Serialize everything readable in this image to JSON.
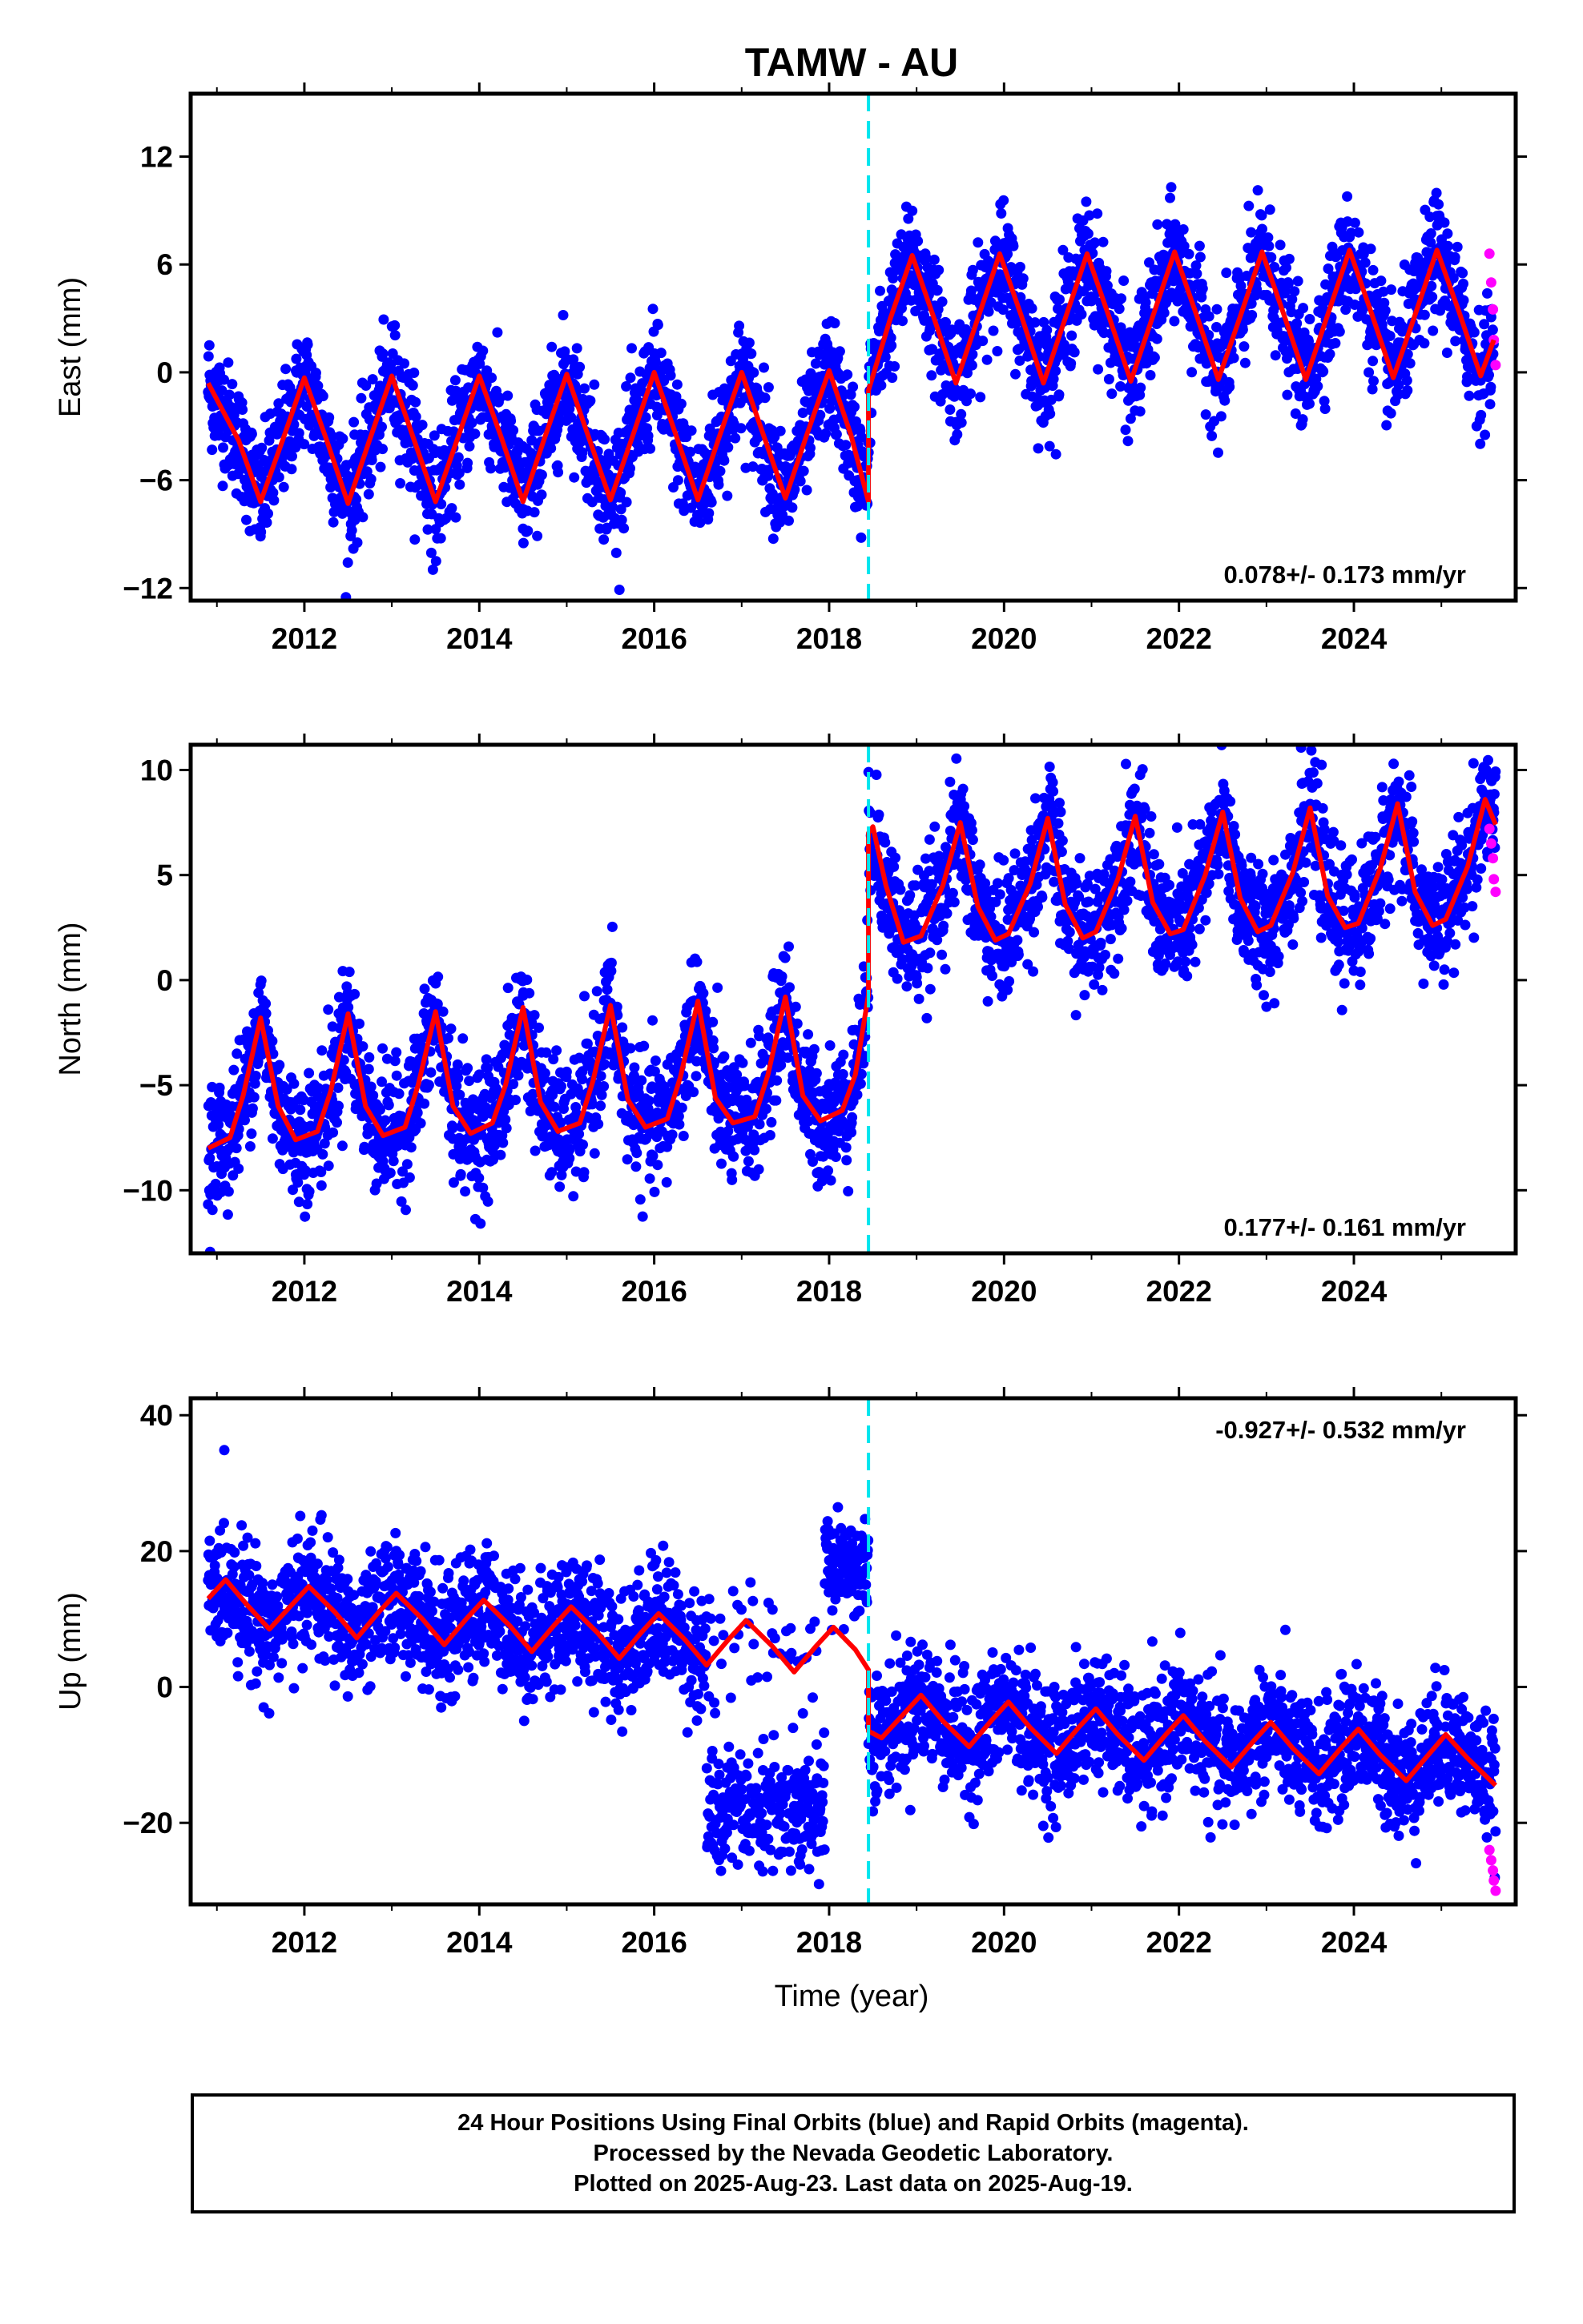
{
  "title": "TAMW - AU",
  "xlabel": "Time (year)",
  "footer": {
    "line1": "24 Hour Positions Using Final Orbits (blue) and Rapid Orbits (magenta).",
    "line2": "Processed by the Nevada Geodetic Laboratory.",
    "line3": "Plotted on 2025-Aug-23. Last data on 2025-Aug-19."
  },
  "colors": {
    "final": "#0000ff",
    "rapid": "#ff00ff",
    "model": "#ff0000",
    "offset": "#00e5ee"
  },
  "chart_data": [
    {
      "type": "scatter",
      "component": "East",
      "ylabel": "East (mm)",
      "xlim": [
        2010.7,
        2025.85
      ],
      "ylim": [
        -12.7,
        15.5
      ],
      "yticks": [
        -12,
        -6,
        0,
        6,
        12
      ],
      "xticks": [
        2012,
        2014,
        2016,
        2018,
        2020,
        2022,
        2024
      ],
      "rate_text": "0.078+/- 0.173 mm/yr",
      "rate_position": "bottom-right",
      "equipment_change": 2018.45,
      "model": {
        "before": {
          "x": [
            2010.9,
            2011.25,
            2011.5,
            2011.75,
            2012.0,
            2012.25,
            2012.5,
            2012.75,
            2013.0,
            2013.25,
            2013.5,
            2013.75,
            2014.0,
            2014.25,
            2014.5,
            2014.75,
            2015.0,
            2015.25,
            2015.5,
            2015.75,
            2016.0,
            2016.25,
            2016.5,
            2016.75,
            2017.0,
            2017.25,
            2017.5,
            2017.75,
            2018.0,
            2018.25,
            2018.45
          ],
          "y": [
            -0.6,
            -3.8,
            -7.2,
            -3.8,
            -0.3,
            -3.7,
            -7.3,
            -3.7,
            -0.2,
            -3.7,
            -7.2,
            -3.7,
            -0.2,
            -3.6,
            -7.2,
            -3.6,
            -0.1,
            -3.6,
            -7.1,
            -3.6,
            0.0,
            -3.5,
            -7.1,
            -3.5,
            0.0,
            -3.5,
            -7.0,
            -3.4,
            0.1,
            -3.5,
            -7.2
          ]
        },
        "after": {
          "x": [
            2018.45,
            2018.7,
            2018.95,
            2019.2,
            2019.45,
            2019.7,
            2019.95,
            2020.2,
            2020.45,
            2020.7,
            2020.95,
            2021.2,
            2021.45,
            2021.7,
            2021.95,
            2022.2,
            2022.45,
            2022.7,
            2022.95,
            2023.2,
            2023.45,
            2023.7,
            2023.95,
            2024.2,
            2024.45,
            2024.7,
            2024.95,
            2025.2,
            2025.45,
            2025.6
          ],
          "y": [
            -1.0,
            3.0,
            6.5,
            3.0,
            -0.6,
            3.0,
            6.6,
            3.1,
            -0.6,
            3.0,
            6.6,
            3.1,
            -0.5,
            3.1,
            6.7,
            3.2,
            -0.4,
            3.1,
            6.7,
            3.2,
            -0.4,
            3.2,
            6.8,
            3.3,
            -0.3,
            3.2,
            6.8,
            3.4,
            -0.2,
            1.8
          ]
        }
      },
      "scatter_sigma": 1.6,
      "rapid": {
        "x": [
          2025.55,
          2025.57,
          2025.59,
          2025.6,
          2025.62
        ],
        "y": [
          6.6,
          5.0,
          3.5,
          1.8,
          0.4
        ]
      }
    },
    {
      "type": "scatter",
      "component": "North",
      "ylabel": "North (mm)",
      "xlim": [
        2010.7,
        2025.85
      ],
      "ylim": [
        -13.0,
        11.2
      ],
      "yticks": [
        -10,
        -5,
        0,
        5,
        10
      ],
      "xticks": [
        2012,
        2014,
        2016,
        2018,
        2020,
        2022,
        2024
      ],
      "rate_text": "0.177+/- 0.161 mm/yr",
      "rate_position": "bottom-right",
      "equipment_change": 2018.45,
      "model": {
        "before": {
          "x": [
            2010.9,
            2011.15,
            2011.3,
            2011.5,
            2011.7,
            2011.9,
            2012.15,
            2012.3,
            2012.5,
            2012.7,
            2012.9,
            2013.15,
            2013.3,
            2013.5,
            2013.7,
            2013.9,
            2014.15,
            2014.3,
            2014.5,
            2014.7,
            2014.9,
            2015.15,
            2015.3,
            2015.5,
            2015.7,
            2015.9,
            2016.15,
            2016.3,
            2016.5,
            2016.7,
            2016.9,
            2017.15,
            2017.3,
            2017.5,
            2017.7,
            2017.9,
            2018.15,
            2018.3,
            2018.45
          ],
          "y": [
            -8.0,
            -7.5,
            -5.5,
            -1.8,
            -6.0,
            -7.6,
            -7.2,
            -5.3,
            -1.6,
            -6.0,
            -7.4,
            -7.0,
            -5.0,
            -1.5,
            -6.0,
            -7.3,
            -6.8,
            -5.0,
            -1.3,
            -5.8,
            -7.2,
            -6.8,
            -4.8,
            -1.2,
            -5.7,
            -7.0,
            -6.6,
            -4.6,
            -1.0,
            -5.6,
            -6.8,
            -6.5,
            -4.5,
            -0.8,
            -5.5,
            -6.7,
            -6.2,
            -4.5,
            -0.7
          ]
        },
        "after": {
          "x": [
            2018.45,
            2018.5,
            2018.65,
            2018.85,
            2019.05,
            2019.3,
            2019.5,
            2019.7,
            2019.9,
            2020.05,
            2020.3,
            2020.5,
            2020.7,
            2020.9,
            2021.05,
            2021.3,
            2021.5,
            2021.7,
            2021.9,
            2022.05,
            2022.3,
            2022.5,
            2022.7,
            2022.9,
            2023.05,
            2023.3,
            2023.5,
            2023.7,
            2023.9,
            2024.05,
            2024.3,
            2024.5,
            2024.7,
            2024.9,
            2025.05,
            2025.3,
            2025.5,
            2025.62
          ],
          "y": [
            7.0,
            7.3,
            4.5,
            1.8,
            2.1,
            4.5,
            7.5,
            3.5,
            1.9,
            2.2,
            4.6,
            7.7,
            3.6,
            2.0,
            2.3,
            4.8,
            7.8,
            3.7,
            2.2,
            2.4,
            5.0,
            8.0,
            3.9,
            2.3,
            2.6,
            5.1,
            8.2,
            4.0,
            2.5,
            2.7,
            5.3,
            8.4,
            4.2,
            2.6,
            2.9,
            5.4,
            8.6,
            7.4
          ]
        }
      },
      "scatter_sigma": 1.5,
      "rapid": {
        "x": [
          2025.55,
          2025.57,
          2025.59,
          2025.6,
          2025.62
        ],
        "y": [
          7.2,
          6.5,
          5.8,
          4.8,
          4.2
        ]
      }
    },
    {
      "type": "scatter",
      "component": "Up",
      "ylabel": "Up (mm)",
      "xlim": [
        2010.7,
        2025.85
      ],
      "ylim": [
        -32.0,
        42.5
      ],
      "yticks": [
        -20,
        0,
        20,
        40
      ],
      "xticks": [
        2012,
        2014,
        2016,
        2018,
        2020,
        2022,
        2024
      ],
      "rate_text": "-0.927+/- 0.532 mm/yr",
      "rate_position": "top-right",
      "equipment_change": 2018.45,
      "model": {
        "before": {
          "x": [
            2010.9,
            2011.1,
            2011.35,
            2011.6,
            2011.85,
            2012.05,
            2012.35,
            2012.6,
            2012.85,
            2013.05,
            2013.35,
            2013.6,
            2013.85,
            2014.05,
            2014.35,
            2014.6,
            2014.85,
            2015.05,
            2015.35,
            2015.6,
            2015.85,
            2016.05,
            2016.35,
            2016.6,
            2016.85,
            2017.05,
            2017.35,
            2017.6,
            2017.85,
            2018.05,
            2018.3,
            2018.45
          ],
          "y": [
            13.0,
            15.8,
            12.0,
            8.5,
            12.0,
            14.8,
            11.0,
            7.2,
            11.0,
            13.8,
            10.0,
            6.2,
            10.0,
            12.8,
            9.0,
            5.2,
            9.0,
            11.8,
            8.0,
            4.2,
            8.0,
            10.8,
            7.0,
            3.2,
            7.0,
            9.8,
            6.0,
            2.2,
            6.0,
            8.8,
            5.5,
            2.5
          ]
        },
        "after": {
          "x": [
            2018.45,
            2018.6,
            2018.85,
            2019.05,
            2019.3,
            2019.6,
            2019.85,
            2020.05,
            2020.3,
            2020.6,
            2020.85,
            2021.05,
            2021.3,
            2021.6,
            2021.85,
            2022.05,
            2022.3,
            2022.6,
            2022.85,
            2023.05,
            2023.3,
            2023.6,
            2023.85,
            2024.05,
            2024.3,
            2024.6,
            2024.85,
            2025.05,
            2025.3,
            2025.62
          ],
          "y": [
            -6.5,
            -7.5,
            -4.0,
            -1.2,
            -5.0,
            -8.8,
            -5.0,
            -2.2,
            -6.0,
            -9.8,
            -6.0,
            -3.2,
            -7.0,
            -10.8,
            -7.0,
            -4.2,
            -8.0,
            -11.8,
            -8.0,
            -5.2,
            -9.0,
            -12.8,
            -9.0,
            -6.2,
            -10.0,
            -13.8,
            -10.0,
            -7.0,
            -10.5,
            -14.5
          ]
        }
      },
      "scatter_sigma": 4.5,
      "rapid": {
        "x": [
          2025.55,
          2025.57,
          2025.59,
          2025.6,
          2025.62
        ],
        "y": [
          -24.0,
          -25.5,
          -27.0,
          -28.5,
          -30.0
        ]
      }
    }
  ]
}
